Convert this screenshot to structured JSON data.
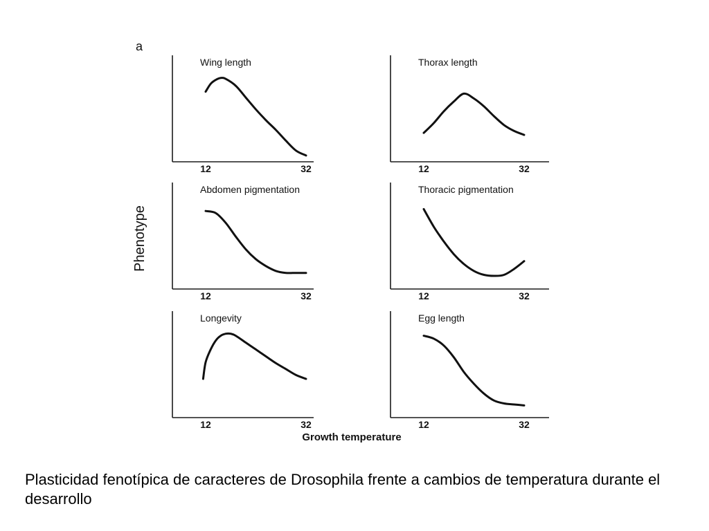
{
  "figure": {
    "panel_letter": "a",
    "ylabel": "Phenotype",
    "xlabel": "Growth temperature"
  },
  "caption": "Plasticidad fenotípica de caracteres de Drosophila frente a cambios de temperatura durante el desarrollo",
  "chart_data": [
    {
      "type": "line",
      "title": "Wing length",
      "x_ticks": [
        12,
        32
      ],
      "xlim": [
        8,
        36
      ],
      "ylim": [
        0,
        1
      ],
      "series": [
        {
          "x": [
            12,
            13,
            14,
            15,
            16,
            18,
            20,
            22,
            24,
            26,
            28,
            30,
            32
          ],
          "y": [
            0.7,
            0.78,
            0.82,
            0.84,
            0.83,
            0.76,
            0.64,
            0.52,
            0.41,
            0.31,
            0.2,
            0.1,
            0.05
          ]
        }
      ]
    },
    {
      "type": "line",
      "title": "Thorax length",
      "x_ticks": [
        12,
        32
      ],
      "xlim": [
        8,
        36
      ],
      "ylim": [
        0,
        1
      ],
      "series": [
        {
          "x": [
            12,
            14,
            16,
            18,
            20,
            22,
            24,
            26,
            28,
            30,
            32
          ],
          "y": [
            0.28,
            0.38,
            0.5,
            0.6,
            0.68,
            0.63,
            0.55,
            0.45,
            0.36,
            0.3,
            0.26
          ]
        }
      ]
    },
    {
      "type": "line",
      "title": "Abdomen pigmentation",
      "x_ticks": [
        12,
        32
      ],
      "xlim": [
        8,
        36
      ],
      "ylim": [
        0,
        1
      ],
      "series": [
        {
          "x": [
            12,
            14,
            16,
            18,
            20,
            22,
            24,
            26,
            28,
            30,
            32
          ],
          "y": [
            0.78,
            0.76,
            0.66,
            0.52,
            0.39,
            0.29,
            0.22,
            0.17,
            0.15,
            0.15,
            0.15
          ]
        }
      ]
    },
    {
      "type": "line",
      "title": "Thoracic pigmentation",
      "x_ticks": [
        12,
        32
      ],
      "xlim": [
        8,
        36
      ],
      "ylim": [
        0,
        1
      ],
      "series": [
        {
          "x": [
            12,
            14,
            16,
            18,
            20,
            22,
            24,
            26,
            28,
            30,
            32
          ],
          "y": [
            0.8,
            0.62,
            0.47,
            0.34,
            0.24,
            0.17,
            0.13,
            0.12,
            0.13,
            0.19,
            0.27
          ]
        }
      ]
    },
    {
      "type": "line",
      "title": "Longevity",
      "x_ticks": [
        12,
        32
      ],
      "xlim": [
        8,
        36
      ],
      "ylim": [
        0,
        1
      ],
      "series": [
        {
          "x": [
            11.5,
            12,
            13,
            14,
            15,
            16,
            17,
            18,
            20,
            22,
            24,
            26,
            28,
            30,
            32
          ],
          "y": [
            0.38,
            0.55,
            0.68,
            0.77,
            0.82,
            0.84,
            0.84,
            0.82,
            0.75,
            0.68,
            0.61,
            0.54,
            0.48,
            0.42,
            0.38
          ]
        }
      ]
    },
    {
      "type": "line",
      "title": "Egg length",
      "x_ticks": [
        12,
        32
      ],
      "xlim": [
        8,
        36
      ],
      "ylim": [
        0,
        1
      ],
      "series": [
        {
          "x": [
            12,
            14,
            16,
            18,
            20,
            22,
            24,
            26,
            28,
            30,
            32
          ],
          "y": [
            0.82,
            0.79,
            0.72,
            0.6,
            0.45,
            0.33,
            0.23,
            0.16,
            0.13,
            0.12,
            0.11
          ]
        }
      ]
    }
  ]
}
